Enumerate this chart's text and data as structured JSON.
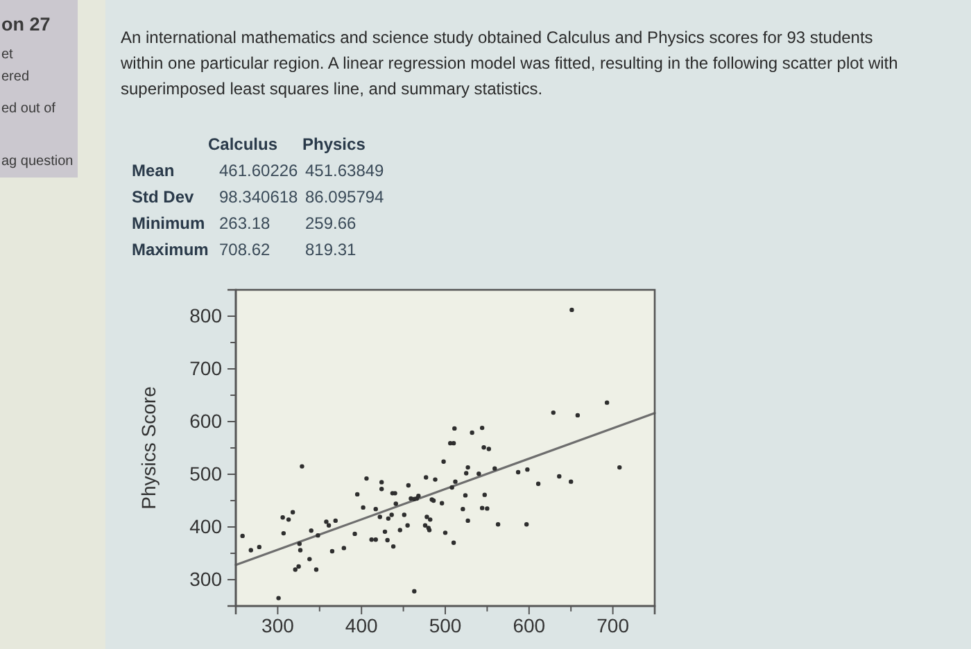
{
  "chart_data": [
    {
      "type": "other",
      "title": "An international mathematics and science study obtained Calculus and Physics scores for 93 students within one particular region. A linear regression model was fitted, resulting in the following scatter plot with superimposed least squares line, and summary statistics.",
      "annotations": [
        "on 27",
        "et",
        "ered",
        "ed out of",
        "ag question"
      ],
      "categories": [
        "Mean",
        "Std Dev",
        "Minimum",
        "Maximum"
      ],
      "data_labels": true,
      "series": [
        {
          "name": "Calculus",
          "values": [
            461.60226,
            98.340618,
            263.18,
            708.62
          ]
        },
        {
          "name": "Physics",
          "values": [
            451.63849,
            86.095794,
            259.66,
            819.31
          ]
        }
      ]
    },
    {
      "type": "scatter",
      "ylabel": "Physics Score",
      "x": [
        258,
        268,
        278,
        301,
        306,
        307,
        313,
        318,
        326,
        327,
        329,
        321,
        325,
        338,
        340,
        346,
        348,
        358,
        361,
        369,
        365,
        379,
        392,
        395,
        402,
        406,
        412,
        417,
        417,
        422,
        424,
        424,
        428,
        431,
        432,
        437,
        440,
        436,
        438,
        441,
        446,
        451,
        456,
        455,
        459,
        463,
        651,
        693,
        629,
        658,
        708,
        511,
        532,
        544,
        506,
        510,
        546,
        552,
        498,
        527,
        559,
        525,
        540,
        587,
        598,
        636,
        650,
        611,
        477,
        488,
        512,
        508,
        524,
        547,
        463,
        466,
        468,
        484,
        486,
        496,
        478,
        482,
        476,
        480,
        481,
        521,
        544,
        550,
        527,
        563,
        597,
        500,
        510
      ],
      "xlim": [
        250,
        750
      ],
      "xticks": [
        300,
        {
          "value": 350,
          "label": null
        },
        400,
        {
          "value": 450,
          "label": null
        },
        500,
        {
          "value": 550,
          "label": null
        },
        600,
        {
          "value": 650,
          "label": null
        },
        700
      ],
      "ylim": [
        250,
        850
      ],
      "yticks": [
        300,
        {
          "value": 350,
          "label": null
        },
        400,
        {
          "value": 450,
          "label": null
        },
        500,
        {
          "value": 550,
          "label": null
        },
        600,
        {
          "value": 650,
          "label": null
        },
        700,
        {
          "value": 750,
          "label": null
        },
        800
      ],
      "series": [
        {
          "color": "#2e2e2e",
          "marker": "circle",
          "values": [
            383,
            356,
            362,
            265,
            418,
            388,
            414,
            428,
            368,
            356,
            515,
            319,
            325,
            339,
            393,
            319,
            384,
            410,
            403,
            412,
            354,
            360,
            387,
            462,
            437,
            492,
            376,
            376,
            434,
            419,
            485,
            472,
            391,
            375,
            416,
            464,
            464,
            423,
            363,
            444,
            394,
            423,
            479,
            403,
            454,
            278,
            812,
            636,
            617,
            612,
            513,
            587,
            579,
            588,
            559,
            559,
            551,
            548,
            524,
            513,
            511,
            502,
            501,
            504,
            509,
            496,
            486,
            482,
            494,
            490,
            486,
            475,
            460,
            461,
            453,
            454,
            459,
            452,
            450,
            445,
            419,
            414,
            403,
            398,
            394,
            434,
            436,
            435,
            412,
            405,
            405,
            389,
            370
          ]
        },
        {
          "type": "line",
          "x": [
            250,
            750
          ],
          "values": [
            328,
            616
          ],
          "color": "#6e6e6e"
        }
      ]
    }
  ]
}
